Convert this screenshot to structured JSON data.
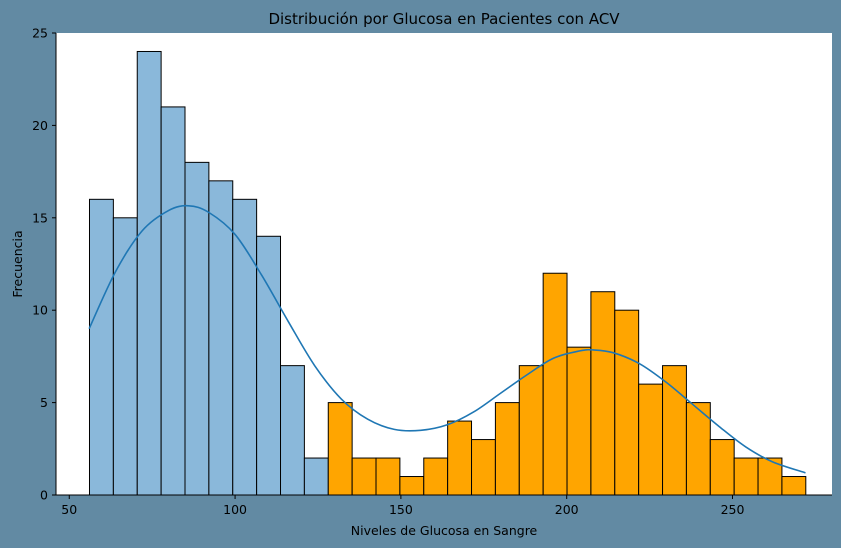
{
  "chart_data": {
    "type": "bar",
    "title": "Distribución por Glucosa en Pacientes con ACV",
    "xlabel": "Niveles de Glucosa en Sangre",
    "ylabel": "Frecuencia",
    "xlim": [
      46,
      280
    ],
    "ylim": [
      0,
      25
    ],
    "xticks": [
      "50",
      "100",
      "150",
      "200",
      "250"
    ],
    "yticks": [
      "0",
      "5",
      "10",
      "15",
      "20",
      "25"
    ],
    "grid": false,
    "colors": {
      "figure_background": "#628aa3",
      "plot_background": "#ffffff",
      "low_bins": "#8ab8da",
      "high_bins": "#ffa500",
      "kde_line": "#1f77b4",
      "edge": "#000000"
    },
    "bins": {
      "edges": [
        56.1,
        63.3,
        70.5,
        77.7,
        84.9,
        92.1,
        99.3,
        106.5,
        113.7,
        120.9,
        128.1,
        135.3,
        142.5,
        149.7,
        156.9,
        164.1,
        171.3,
        178.5,
        185.7,
        192.9,
        200.1,
        207.3,
        214.5,
        221.7,
        228.9,
        236.1,
        243.3,
        250.5,
        257.7,
        264.9,
        272.1
      ],
      "counts": [
        16,
        15,
        24,
        21,
        18,
        17,
        16,
        14,
        7,
        2,
        5,
        2,
        2,
        1,
        2,
        4,
        3,
        5,
        7,
        12,
        8,
        11,
        10,
        6,
        7,
        5,
        3,
        2,
        2,
        1
      ],
      "color_groups": [
        "low",
        "low",
        "low",
        "low",
        "low",
        "low",
        "low",
        "low",
        "low",
        "low",
        "high",
        "high",
        "high",
        "high",
        "high",
        "high",
        "high",
        "high",
        "high",
        "high",
        "high",
        "high",
        "high",
        "high",
        "high",
        "high",
        "high",
        "high",
        "high",
        "high"
      ]
    },
    "kde": {
      "x": [
        56,
        64,
        72,
        80,
        86,
        92,
        100,
        108,
        116,
        124,
        132,
        140,
        148,
        156,
        164,
        172,
        180,
        188,
        196,
        204,
        208,
        214,
        222,
        230,
        238,
        246,
        254,
        262,
        272
      ],
      "y": [
        9.0,
        12.1,
        14.3,
        15.4,
        15.65,
        15.3,
        14.1,
        11.9,
        9.4,
        7.0,
        5.2,
        4.1,
        3.55,
        3.5,
        3.8,
        4.5,
        5.5,
        6.5,
        7.4,
        7.8,
        7.85,
        7.7,
        7.1,
        6.1,
        4.9,
        3.7,
        2.6,
        1.8,
        1.2
      ]
    }
  }
}
